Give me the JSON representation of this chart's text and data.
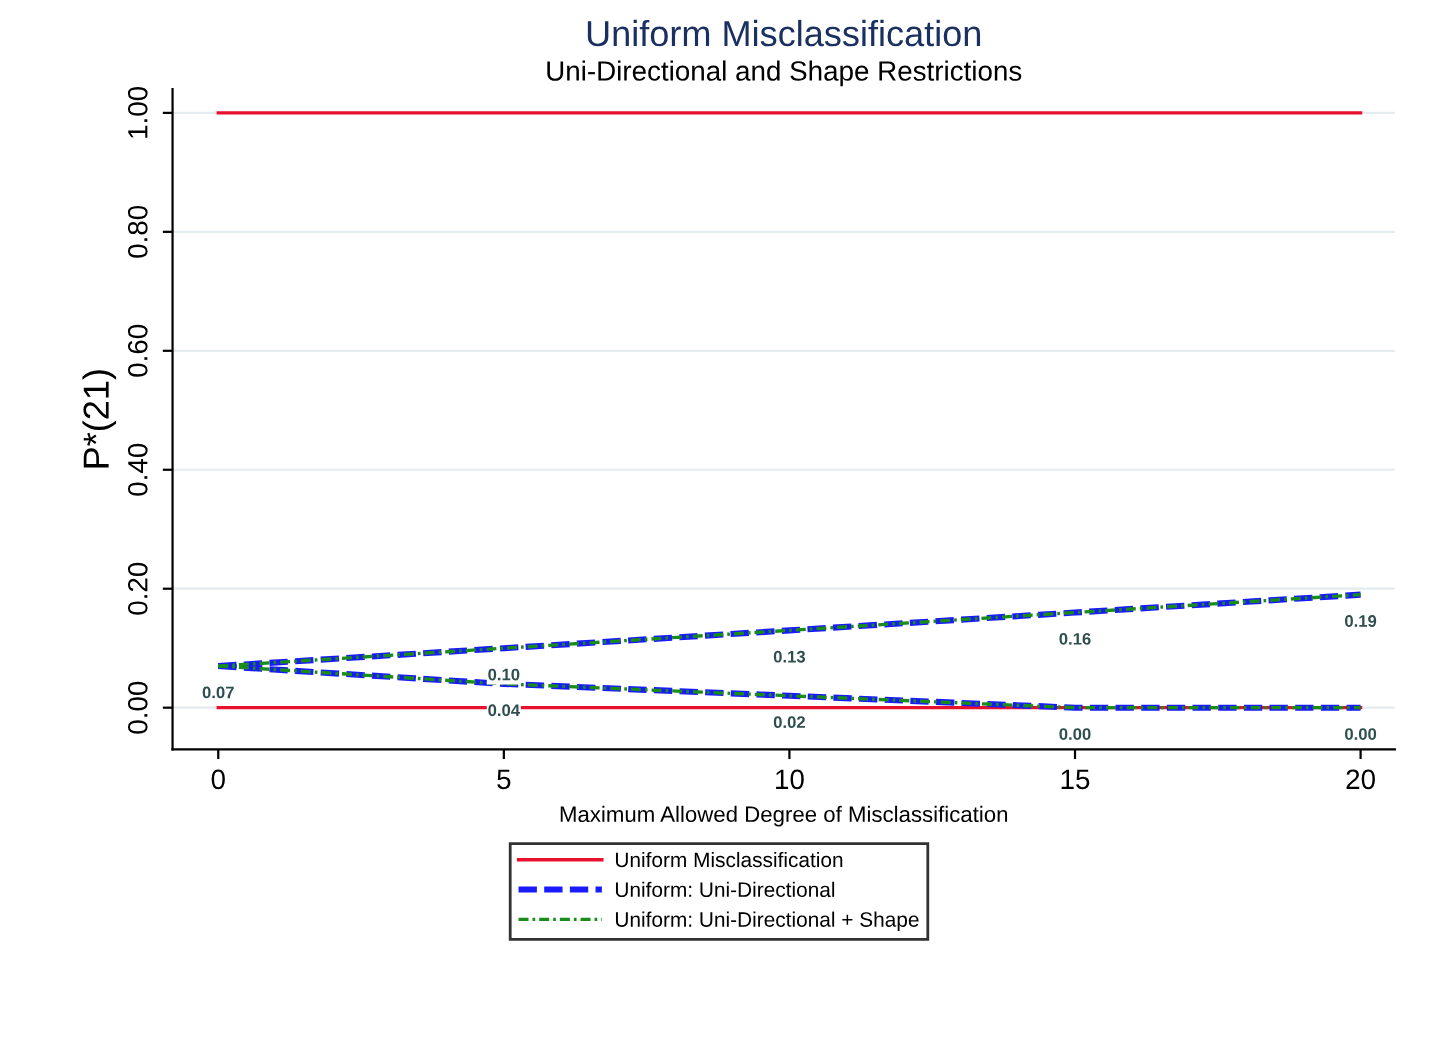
{
  "chart_data": {
    "type": "line",
    "title": "Uniform Misclassification",
    "subtitle": "Uni-Directional and Shape Restrictions",
    "xlabel": "Maximum Allowed Degree of Misclassification",
    "ylabel": "P*(21)",
    "x": [
      0,
      5,
      10,
      15,
      20
    ],
    "series": [
      {
        "name": "Uniform Misclassification",
        "color": "#e8112d",
        "values": [
          1,
          1,
          1,
          1,
          1
        ],
        "line_style": "solid"
      },
      {
        "color": "#e8112d",
        "values": [
          0,
          0,
          0,
          0,
          0
        ],
        "line_style": "solid"
      },
      {
        "name": "Uniform: Uni-Directional",
        "color": "#1a1aff",
        "values": [
          0.07,
          0.1,
          0.13,
          0.16,
          0.19
        ],
        "line_style": "dashed"
      },
      {
        "color": "#1a1aff",
        "values": [
          0.07,
          0.04,
          0.02,
          0.0,
          0.0
        ],
        "line_style": "dashed"
      },
      {
        "name": "Uniform: Uni-Directional + Shape",
        "color": "#1a8c1a",
        "values": [
          0.07,
          0.1,
          0.13,
          0.16,
          0.19
        ],
        "line_style": "dashdot",
        "value_labels": [
          "0.07",
          "0.10",
          "0.13",
          "0.16",
          "0.19"
        ]
      },
      {
        "color": "#1a8c1a",
        "values": [
          0.07,
          0.04,
          0.02,
          0.0,
          0.0
        ],
        "line_style": "dashdot",
        "value_labels": [
          null,
          "0.04",
          "0.02",
          "0.00",
          "0.00"
        ]
      }
    ],
    "xlim": [
      -0.8,
      20.6
    ],
    "ylim": [
      -0.07,
      1.04
    ],
    "xticks": [
      0,
      5,
      10,
      15,
      20
    ],
    "yticks": [
      {
        "value": 0,
        "label": "0.00"
      },
      {
        "value": 0.2,
        "label": "0.20"
      },
      {
        "value": 0.4,
        "label": "0.40"
      },
      {
        "value": 0.6,
        "label": "0.60"
      },
      {
        "value": 0.8,
        "label": "0.80"
      },
      {
        "value": 1,
        "label": "1.00"
      }
    ],
    "grid": "y",
    "legend": "bottom",
    "marker": "none"
  }
}
